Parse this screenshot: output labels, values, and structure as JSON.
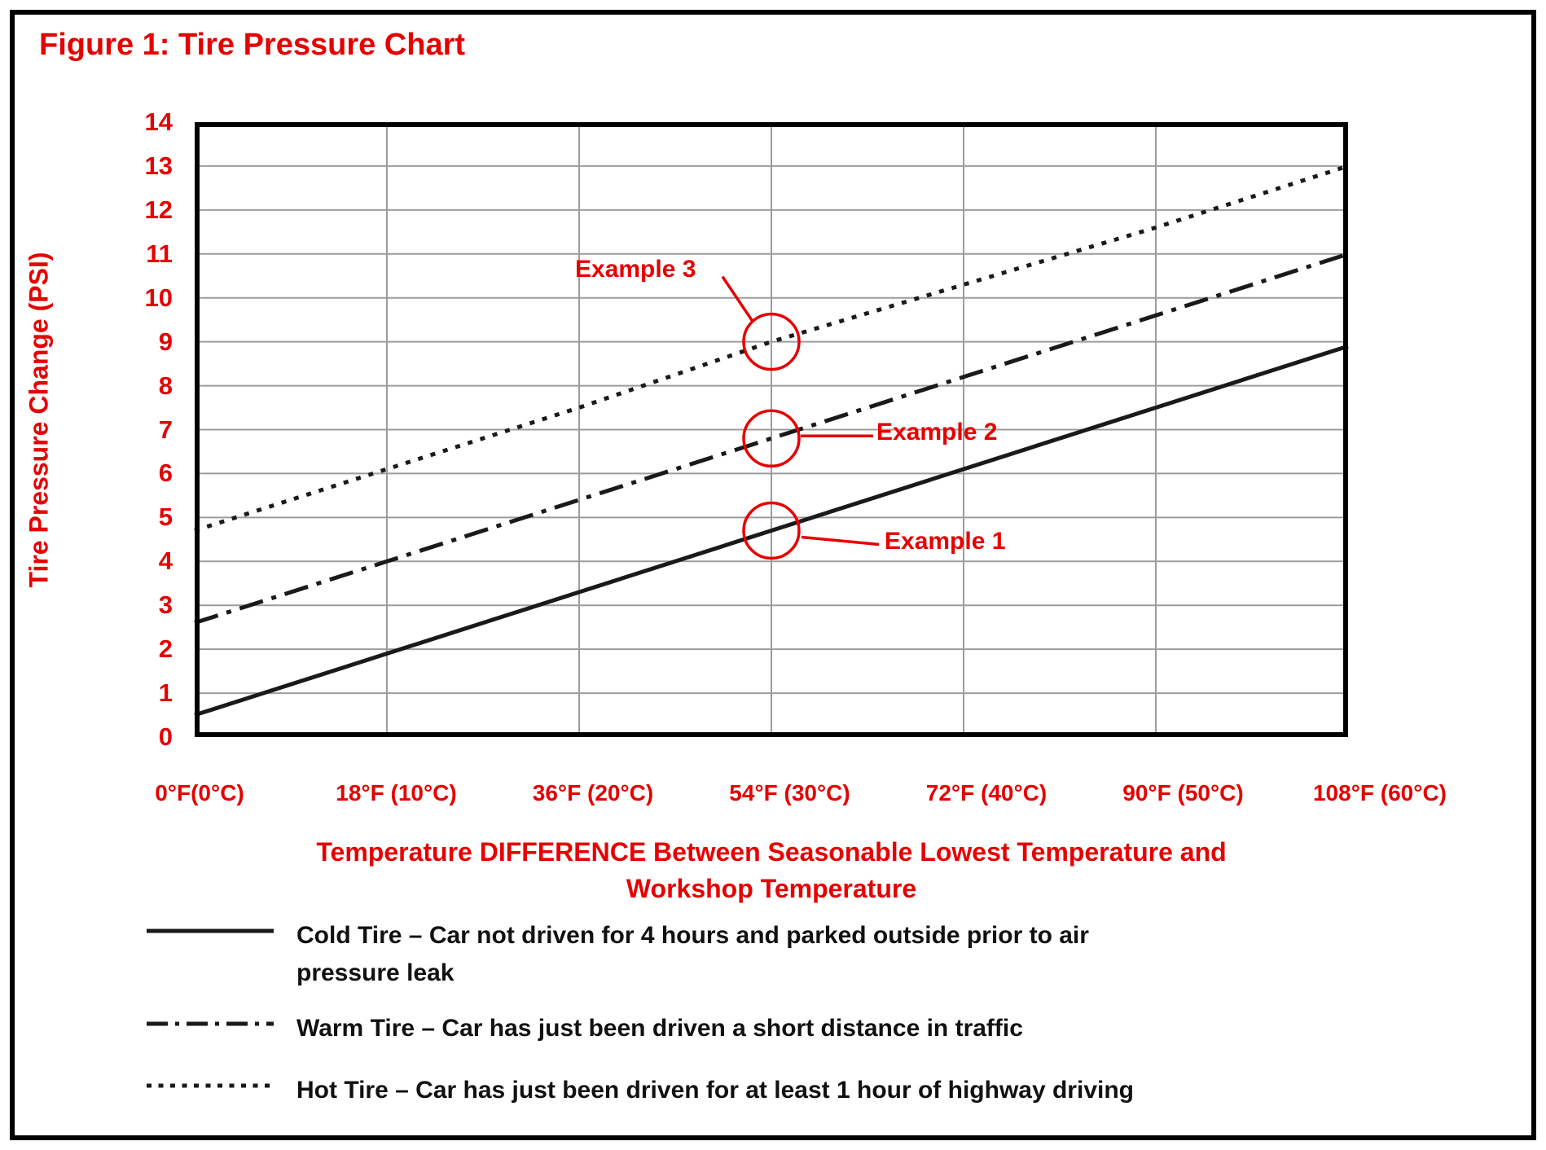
{
  "figure": {
    "title": "Figure 1: Tire Pressure Chart"
  },
  "chart_data": {
    "type": "line",
    "title": "Figure 1: Tire Pressure Chart",
    "xlabel": "Temperature DIFFERENCE Between Seasonable Lowest Temperature and Workshop Temperature",
    "xlabel_lines": [
      "Temperature DIFFERENCE Between Seasonable Lowest Temperature and",
      "Workshop Temperature"
    ],
    "ylabel": "Tire Pressure Change (PSI)",
    "x_values_F": [
      0,
      18,
      36,
      54,
      72,
      90,
      108
    ],
    "x_tick_labels": [
      "0°F(0°C)",
      "18°F (10°C)",
      "36°F (20°C)",
      "54°F (30°C)",
      "72°F (40°C)",
      "90°F (50°C)",
      "108°F (60°C)"
    ],
    "yticks": [
      0,
      1,
      2,
      3,
      4,
      5,
      6,
      7,
      8,
      9,
      10,
      11,
      12,
      13,
      14
    ],
    "ylim": [
      0,
      14
    ],
    "xlim_F": [
      0,
      108
    ],
    "grid": true,
    "legend_position": "below",
    "series": [
      {
        "name": "Cold Tire",
        "line_style": "solid",
        "values": [
          0.5,
          1.9,
          3.3,
          4.7,
          6.1,
          7.5,
          8.9
        ]
      },
      {
        "name": "Warm Tire",
        "line_style": "dash-dot",
        "values": [
          2.6,
          4.0,
          5.4,
          6.8,
          8.2,
          9.6,
          11.0
        ]
      },
      {
        "name": "Hot Tire",
        "line_style": "dotted",
        "values": [
          4.7,
          6.1,
          7.5,
          9.0,
          10.3,
          11.6,
          13.0
        ]
      }
    ],
    "annotations": [
      {
        "label": "Example 1",
        "x_F": 54,
        "y_psi": 4.7,
        "series": "Cold Tire"
      },
      {
        "label": "Example 2",
        "x_F": 54,
        "y_psi": 6.8,
        "series": "Warm Tire"
      },
      {
        "label": "Example 3",
        "x_F": 54,
        "y_psi": 9.0,
        "series": "Hot Tire"
      }
    ],
    "colors": {
      "axis_text": "#e60000",
      "annotation": "#e60000",
      "series_line": "#1a1a1a",
      "grid": "#9c9c9c",
      "background": "#ffffff",
      "border": "#000000"
    }
  },
  "legend": {
    "items": [
      {
        "name": "Cold Tire",
        "line_style": "solid",
        "lines": [
          "Cold Tire – Car not driven for 4 hours and parked outside prior to air",
          "pressure leak"
        ]
      },
      {
        "name": "Warm Tire",
        "line_style": "dash-dot",
        "lines": [
          "Warm Tire – Car has just been driven a short distance in traffic"
        ]
      },
      {
        "name": "Hot Tire",
        "line_style": "dotted",
        "lines": [
          "Hot Tire – Car has just been driven for at least 1 hour of highway driving"
        ]
      }
    ]
  }
}
